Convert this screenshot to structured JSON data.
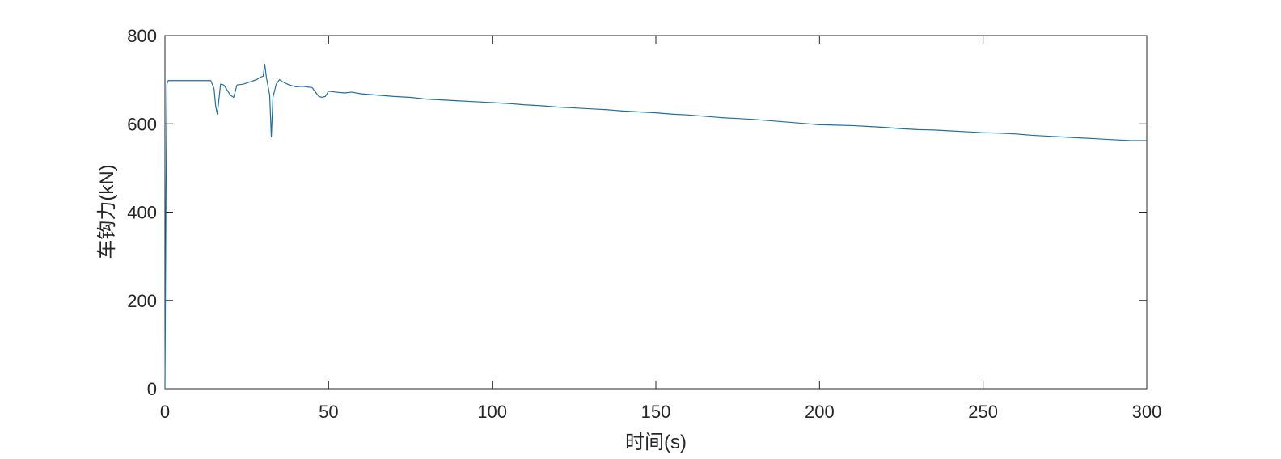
{
  "chart_data": {
    "type": "line",
    "title": "",
    "xlabel": "时间(s)",
    "ylabel": "车钩力(kN)",
    "xlim": [
      0,
      300
    ],
    "ylim": [
      0,
      800
    ],
    "xticks": [
      0,
      50,
      100,
      150,
      200,
      250,
      300
    ],
    "yticks": [
      0,
      200,
      400,
      600,
      800
    ],
    "xtick_labels": [
      "0",
      "50",
      "100",
      "150",
      "200",
      "250",
      "300"
    ],
    "ytick_labels": [
      "0",
      "200",
      "400",
      "600",
      "800"
    ],
    "grid": false,
    "legend": "none",
    "colors": {
      "line": "#1f6f9f",
      "axis": "#262626"
    },
    "series": [
      {
        "x": [
          0,
          0.3,
          0.6,
          1,
          2,
          5,
          10,
          14,
          15,
          15.5,
          16,
          17,
          18,
          20,
          21,
          22,
          24,
          26,
          28,
          29,
          30,
          30.5,
          31,
          32,
          32.5,
          33,
          34,
          35,
          36,
          38,
          40,
          42,
          45,
          47,
          48,
          49,
          50,
          52,
          55,
          57,
          60,
          65,
          70,
          75,
          80,
          85,
          90,
          95,
          100,
          105,
          110,
          115,
          120,
          125,
          130,
          135,
          140,
          145,
          150,
          155,
          160,
          165,
          170,
          175,
          180,
          185,
          190,
          195,
          200,
          205,
          210,
          215,
          220,
          225,
          230,
          235,
          240,
          245,
          250,
          255,
          260,
          265,
          270,
          275,
          280,
          285,
          290,
          295,
          300
        ],
        "y": [
          0,
          420,
          690,
          698,
          698,
          698,
          698,
          698,
          680,
          640,
          622,
          690,
          688,
          665,
          660,
          688,
          690,
          695,
          700,
          705,
          708,
          735,
          705,
          665,
          570,
          660,
          690,
          700,
          695,
          688,
          684,
          685,
          682,
          662,
          660,
          662,
          674,
          672,
          670,
          672,
          668,
          665,
          662,
          660,
          656,
          654,
          652,
          650,
          648,
          646,
          643,
          641,
          638,
          636,
          634,
          632,
          629,
          627,
          625,
          622,
          620,
          617,
          614,
          612,
          610,
          607,
          604,
          601,
          598,
          597,
          596,
          594,
          592,
          589,
          587,
          586,
          584,
          582,
          580,
          579,
          577,
          574,
          572,
          570,
          568,
          566,
          564,
          562,
          562
        ]
      }
    ]
  }
}
